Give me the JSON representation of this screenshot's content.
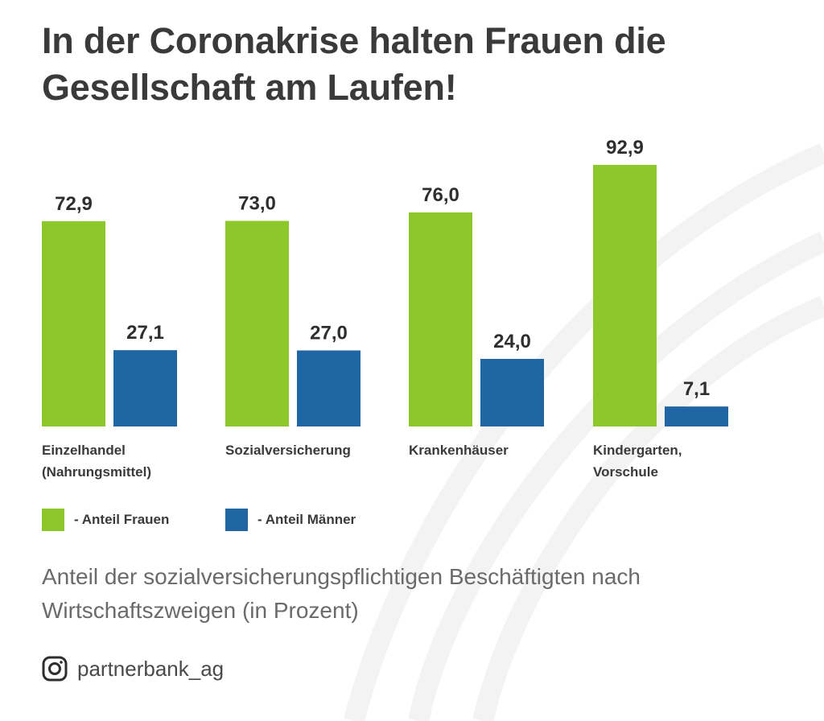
{
  "title": "In der Coronakrise halten Frauen die Gesellschaft am Laufen!",
  "subtitle": "Anteil der sozialversicherungspflichtigen Beschäftigten nach Wirtschaftszweigen (in Prozent)",
  "footer": {
    "icon": "instagram-icon",
    "handle": "partnerbank_ag"
  },
  "colors": {
    "frauen": "#8cc72c",
    "maenner": "#1f65a3"
  },
  "legend": [
    {
      "label": "- Anteil Frauen",
      "color": "#8cc72c"
    },
    {
      "label": "- Anteil Männer",
      "color": "#1f65a3"
    }
  ],
  "chart_data": {
    "type": "bar",
    "categories": [
      "Einzelhandel\n(Nahrungsmittel)",
      "Sozialversicherung",
      "Krankenhäuser",
      "Kindergarten,\nVorschule"
    ],
    "series": [
      {
        "name": "Anteil Frauen",
        "values": [
          72.9,
          73.0,
          76.0,
          92.9
        ],
        "labels": [
          "72,9",
          "73,0",
          "76,0",
          "92,9"
        ]
      },
      {
        "name": "Anteil Männer",
        "values": [
          27.1,
          27.0,
          24.0,
          7.1
        ],
        "labels": [
          "27,1",
          "27,0",
          "24,0",
          "7,1"
        ]
      }
    ],
    "ylim": [
      0,
      100
    ],
    "grid": false,
    "legend_position": "bottom-left"
  }
}
